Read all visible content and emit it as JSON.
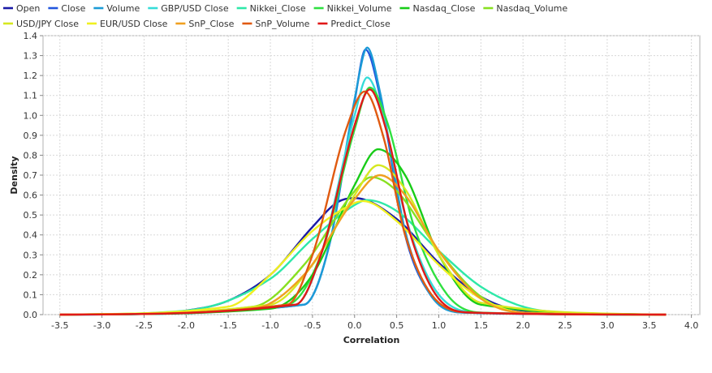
{
  "chart_data": {
    "type": "line",
    "xlabel": "Correlation",
    "ylabel": "Density",
    "xlim": [
      -3.7,
      4.1
    ],
    "ylim": [
      0,
      1.4
    ],
    "x_ticks": [
      -3.5,
      -3.0,
      -2.5,
      -2.0,
      -1.5,
      -1.0,
      -0.5,
      0.0,
      0.5,
      1.0,
      1.5,
      2.0,
      2.5,
      3.0,
      3.5,
      4.0
    ],
    "y_ticks": [
      0.0,
      0.1,
      0.2,
      0.3,
      0.4,
      0.5,
      0.6,
      0.7,
      0.8,
      0.9,
      1.0,
      1.1,
      1.2,
      1.3,
      1.4
    ],
    "grid": true,
    "legend_position": "top",
    "series": [
      {
        "name": "Open",
        "color": "#1a1aa6",
        "x": [
          -3.5,
          -2.5,
          -2.0,
          -1.5,
          -1.0,
          -0.5,
          -0.2,
          0.0,
          0.5,
          1.0,
          1.5,
          2.0,
          3.7
        ],
        "y": [
          0.0,
          0.005,
          0.02,
          0.07,
          0.2,
          0.44,
          0.565,
          0.585,
          0.48,
          0.26,
          0.09,
          0.02,
          0.0
        ]
      },
      {
        "name": "Close",
        "color": "#2255dd",
        "x": [
          -3.5,
          -0.6,
          -0.3,
          0.0,
          0.13,
          0.3,
          0.6,
          0.9,
          1.3,
          3.7
        ],
        "y": [
          0.0,
          0.05,
          0.35,
          1.07,
          1.33,
          1.1,
          0.4,
          0.1,
          0.01,
          0.0
        ]
      },
      {
        "name": "Volume",
        "color": "#1b9bd6",
        "x": [
          -3.5,
          -0.6,
          -0.3,
          0.0,
          0.15,
          0.3,
          0.6,
          0.9,
          1.3,
          3.7
        ],
        "y": [
          0.0,
          0.05,
          0.35,
          1.08,
          1.34,
          1.12,
          0.42,
          0.1,
          0.01,
          0.0
        ]
      },
      {
        "name": "GBP/USD Close",
        "color": "#35dcd8",
        "x": [
          -3.5,
          -0.7,
          -0.4,
          0.0,
          0.15,
          0.35,
          0.6,
          1.0,
          1.5,
          3.7
        ],
        "y": [
          0.0,
          0.05,
          0.3,
          1.0,
          1.19,
          0.98,
          0.5,
          0.1,
          0.01,
          0.0
        ]
      },
      {
        "name": "Nikkei_Close",
        "color": "#2ee8a8",
        "x": [
          -3.5,
          -2.0,
          -1.0,
          -0.5,
          0.0,
          0.15,
          0.5,
          1.0,
          1.5,
          2.0,
          2.5,
          3.7
        ],
        "y": [
          0.0,
          0.02,
          0.18,
          0.38,
          0.55,
          0.575,
          0.52,
          0.32,
          0.14,
          0.04,
          0.01,
          0.0
        ]
      },
      {
        "name": "Nikkei_Volume",
        "color": "#2fe040",
        "x": [
          -3.5,
          -0.8,
          -0.4,
          0.0,
          0.18,
          0.4,
          0.7,
          1.1,
          1.5,
          3.7
        ],
        "y": [
          0.0,
          0.05,
          0.3,
          0.93,
          1.14,
          0.95,
          0.45,
          0.1,
          0.01,
          0.0
        ]
      },
      {
        "name": "Nasdaq_Close",
        "color": "#18cc18",
        "x": [
          -3.5,
          -1.0,
          -0.5,
          0.0,
          0.28,
          0.6,
          1.0,
          1.5,
          3.7
        ],
        "y": [
          0.0,
          0.03,
          0.2,
          0.65,
          0.83,
          0.7,
          0.3,
          0.05,
          0.0
        ]
      },
      {
        "name": "Nasdaq_Volume",
        "color": "#88e020",
        "x": [
          -3.5,
          -1.2,
          -0.6,
          0.0,
          0.2,
          0.5,
          1.0,
          1.5,
          2.0,
          3.7
        ],
        "y": [
          0.0,
          0.04,
          0.25,
          0.62,
          0.69,
          0.62,
          0.32,
          0.09,
          0.01,
          0.0
        ]
      },
      {
        "name": "USD/JPY Close",
        "color": "#d6e820",
        "x": [
          -3.5,
          -1.0,
          -0.5,
          0.0,
          0.28,
          0.6,
          1.0,
          1.5,
          3.7
        ],
        "y": [
          0.0,
          0.05,
          0.25,
          0.6,
          0.75,
          0.63,
          0.3,
          0.06,
          0.0
        ]
      },
      {
        "name": "EUR/USD Close",
        "color": "#f0f020",
        "x": [
          -3.5,
          -1.5,
          -1.0,
          -0.5,
          0.0,
          0.1,
          0.5,
          1.0,
          1.5,
          2.0,
          3.7
        ],
        "y": [
          0.0,
          0.04,
          0.2,
          0.42,
          0.56,
          0.57,
          0.47,
          0.25,
          0.08,
          0.01,
          0.0
        ]
      },
      {
        "name": "SnP_Close",
        "color": "#f0a020",
        "x": [
          -3.5,
          -1.2,
          -0.6,
          0.0,
          0.3,
          0.6,
          1.0,
          1.5,
          2.0,
          3.7
        ],
        "y": [
          0.0,
          0.03,
          0.2,
          0.58,
          0.7,
          0.6,
          0.32,
          0.08,
          0.01,
          0.0
        ]
      },
      {
        "name": "SnP_Volume",
        "color": "#e05a10",
        "x": [
          -3.5,
          -0.8,
          -0.5,
          -0.1,
          0.12,
          0.35,
          0.6,
          1.0,
          1.4,
          3.7
        ],
        "y": [
          0.0,
          0.05,
          0.3,
          0.93,
          1.12,
          0.88,
          0.4,
          0.06,
          0.01,
          0.0
        ]
      },
      {
        "name": "Predict_Close",
        "color": "#e01818",
        "x": [
          -3.5,
          -0.7,
          -0.4,
          0.0,
          0.18,
          0.38,
          0.65,
          1.0,
          1.4,
          3.7
        ],
        "y": [
          0.0,
          0.05,
          0.3,
          0.95,
          1.13,
          0.92,
          0.42,
          0.08,
          0.01,
          0.0
        ]
      }
    ]
  }
}
